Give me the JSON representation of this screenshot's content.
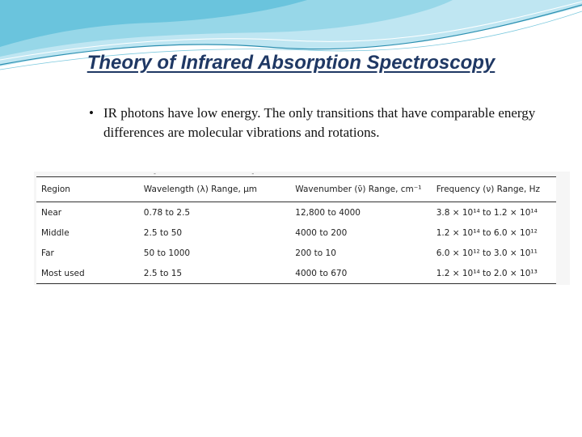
{
  "slide": {
    "title": "Theory of Infrared Absorption Spectroscopy",
    "bullets": [
      "IR photons have low energy. The only transitions that have comparable energy differences are molecular vibrations and rotations."
    ],
    "bullet_symbol": "•"
  },
  "colors": {
    "title": "#1f3864",
    "wave_light": "#bfe6f2",
    "wave_mid": "#5fbfd9",
    "wave_dark": "#2b8fb0"
  },
  "table": {
    "columns": [
      "Region",
      "Wavelength (λ) Range, μm",
      "Wavenumber (ν̄) Range, cm⁻¹",
      "Frequency (ν) Range, Hz"
    ],
    "rows": [
      [
        "Near",
        "0.78 to 2.5",
        "12,800 to 4000",
        "3.8 × 10¹⁴  to  1.2 × 10¹⁴"
      ],
      [
        "Middle",
        "2.5 to 50",
        "4000 to 200",
        "1.2 × 10¹⁴  to  6.0 × 10¹²"
      ],
      [
        "Far",
        "50 to 1000",
        "200 to 10",
        "6.0 × 10¹²  to  3.0 × 10¹¹"
      ],
      [
        "Most used",
        "2.5 to 15",
        "4000 to 670",
        "1.2 × 10¹⁴  to  2.0 × 10¹³"
      ]
    ]
  },
  "decor": {
    "marks": "- -"
  }
}
